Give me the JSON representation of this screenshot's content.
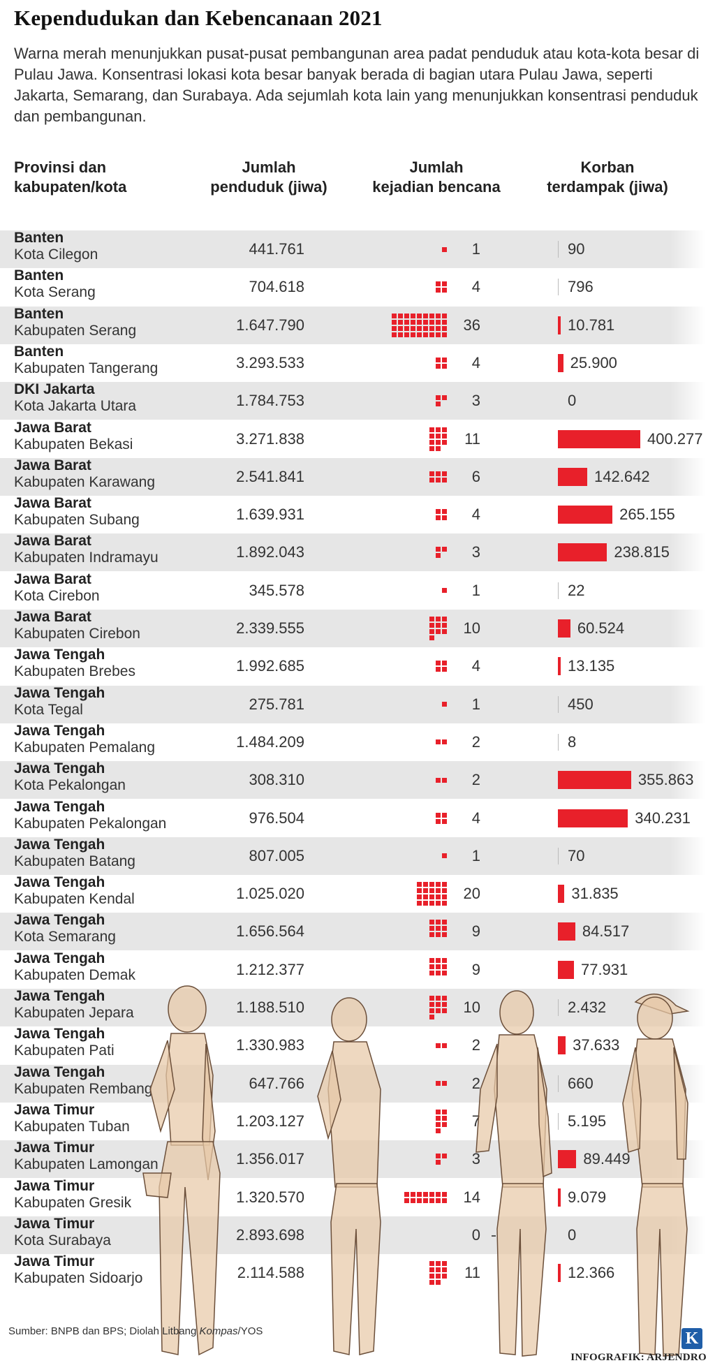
{
  "title": "Kependudukan dan Kebencanaan 2021",
  "intro": "Warna merah menunjukkan pusat-pusat pembangunan area padat penduduk atau kota-kota besar di Pulau Jawa. Konsentrasi lokasi kota besar banyak berada di bagian utara Pulau Jawa, seperti Jakarta, Semarang, dan Surabaya. Ada sejumlah kota lain yang menunjukkan konsentrasi penduduk dan pembangunan.",
  "headers": {
    "region": [
      "Provinsi  dan",
      "kabupaten/kota"
    ],
    "population": [
      "Jumlah",
      "penduduk (jiwa)"
    ],
    "disasters": [
      "Jumlah",
      "kejadian bencana"
    ],
    "victims": [
      "Korban",
      "terdampak (jiwa)"
    ]
  },
  "colors": {
    "accent": "#e8202a",
    "row_shade": "#e6e6e6",
    "figure_fill": "#e8c9a8",
    "figure_outline": "#6b4f3a",
    "logo": "#1f5ea8"
  },
  "chart_data": {
    "type": "table",
    "rows": [
      {
        "province": "Banten",
        "region": "Kota Cilegon",
        "population": "441.761",
        "disasters": 1,
        "victims": 90,
        "victims_label": "90"
      },
      {
        "province": "Banten",
        "region": "Kota Serang",
        "population": "704.618",
        "disasters": 4,
        "victims": 796,
        "victims_label": "796"
      },
      {
        "province": "Banten",
        "region": "Kabupaten Serang",
        "population": "1.647.790",
        "disasters": 36,
        "victims": 10781,
        "victims_label": "10.781"
      },
      {
        "province": "Banten",
        "region": "Kabupaten Tangerang",
        "population": "3.293.533",
        "disasters": 4,
        "victims": 25900,
        "victims_label": "25.900"
      },
      {
        "province": "DKI Jakarta",
        "region": "Kota Jakarta Utara",
        "population": "1.784.753",
        "disasters": 3,
        "victims": 0,
        "victims_label": "0"
      },
      {
        "province": "Jawa Barat",
        "region": "Kabupaten Bekasi",
        "population": "3.271.838",
        "disasters": 11,
        "victims": 400277,
        "victims_label": "400.277"
      },
      {
        "province": "Jawa Barat",
        "region": "Kabupaten Karawang",
        "population": "2.541.841",
        "disasters": 6,
        "victims": 142642,
        "victims_label": "142.642"
      },
      {
        "province": "Jawa Barat",
        "region": "Kabupaten Subang",
        "population": "1.639.931",
        "disasters": 4,
        "victims": 265155,
        "victims_label": "265.155"
      },
      {
        "province": "Jawa Barat",
        "region": "Kabupaten Indramayu",
        "population": "1.892.043",
        "disasters": 3,
        "victims": 238815,
        "victims_label": "238.815"
      },
      {
        "province": "Jawa Barat",
        "region": "Kota Cirebon",
        "population": "345.578",
        "disasters": 1,
        "victims": 22,
        "victims_label": "22"
      },
      {
        "province": "Jawa Barat",
        "region": "Kabupaten Cirebon",
        "population": "2.339.555",
        "disasters": 10,
        "victims": 60524,
        "victims_label": "60.524"
      },
      {
        "province": "Jawa Tengah",
        "region": "Kabupaten Brebes",
        "population": "1.992.685",
        "disasters": 4,
        "victims": 13135,
        "victims_label": "13.135"
      },
      {
        "province": "Jawa Tengah",
        "region": "Kota Tegal",
        "population": "275.781",
        "disasters": 1,
        "victims": 450,
        "victims_label": "450"
      },
      {
        "province": "Jawa Tengah",
        "region": "Kabupaten Pemalang",
        "population": "1.484.209",
        "disasters": 2,
        "victims": 8,
        "victims_label": "8"
      },
      {
        "province": "Jawa Tengah",
        "region": "Kota Pekalongan",
        "population": "308.310",
        "disasters": 2,
        "victims": 355863,
        "victims_label": "355.863"
      },
      {
        "province": "Jawa Tengah",
        "region": "Kabupaten Pekalongan",
        "population": "976.504",
        "disasters": 4,
        "victims": 340231,
        "victims_label": "340.231"
      },
      {
        "province": "Jawa Tengah",
        "region": "Kabupaten Batang",
        "population": "807.005",
        "disasters": 1,
        "victims": 70,
        "victims_label": "70"
      },
      {
        "province": "Jawa Tengah",
        "region": "Kabupaten Kendal",
        "population": "1.025.020",
        "disasters": 20,
        "victims": 31835,
        "victims_label": "31.835"
      },
      {
        "province": "Jawa Tengah",
        "region": "Kota Semarang",
        "population": "1.656.564",
        "disasters": 9,
        "victims": 84517,
        "victims_label": "84.517"
      },
      {
        "province": "Jawa Tengah",
        "region": "Kabupaten Demak",
        "population": "1.212.377",
        "disasters": 9,
        "victims": 77931,
        "victims_label": "77.931"
      },
      {
        "province": "Jawa Tengah",
        "region": "Kabupaten Jepara",
        "population": "1.188.510",
        "disasters": 10,
        "victims": 2432,
        "victims_label": "2.432"
      },
      {
        "province": "Jawa Tengah",
        "region": "Kabupaten Pati",
        "population": "1.330.983",
        "disasters": 2,
        "victims": 37633,
        "victims_label": "37.633"
      },
      {
        "province": "Jawa Tengah",
        "region": "Kabupaten Rembang",
        "population": "647.766",
        "disasters": 2,
        "victims": 660,
        "victims_label": "660"
      },
      {
        "province": "Jawa Timur",
        "region": "Kabupaten Tuban",
        "population": "1.203.127",
        "disasters": 7,
        "victims": 5195,
        "victims_label": "5.195"
      },
      {
        "province": "Jawa Timur",
        "region": "Kabupaten Lamongan",
        "population": "1.356.017",
        "disasters": 3,
        "victims": 89449,
        "victims_label": "89.449"
      },
      {
        "province": "Jawa Timur",
        "region": "Kabupaten Gresik",
        "population": "1.320.570",
        "disasters": 14,
        "victims": 9079,
        "victims_label": "9.079"
      },
      {
        "province": "Jawa Timur",
        "region": "Kota Surabaya",
        "population": "2.893.698",
        "disasters": 0,
        "victims": 0,
        "victims_label": "0"
      },
      {
        "province": "Jawa Timur",
        "region": "Kabupaten Sidoarjo",
        "population": "2.114.588",
        "disasters": 11,
        "victims": 12366,
        "victims_label": "12.366"
      }
    ]
  },
  "footer": {
    "source_prefix": "Sumber: BNPB dan BPS; Diolah Litbang ",
    "source_italic": "Kompas",
    "source_suffix": "/YOS",
    "credit": "INFOGRAFIK: ARJENDRO",
    "logo_letter": "K"
  }
}
